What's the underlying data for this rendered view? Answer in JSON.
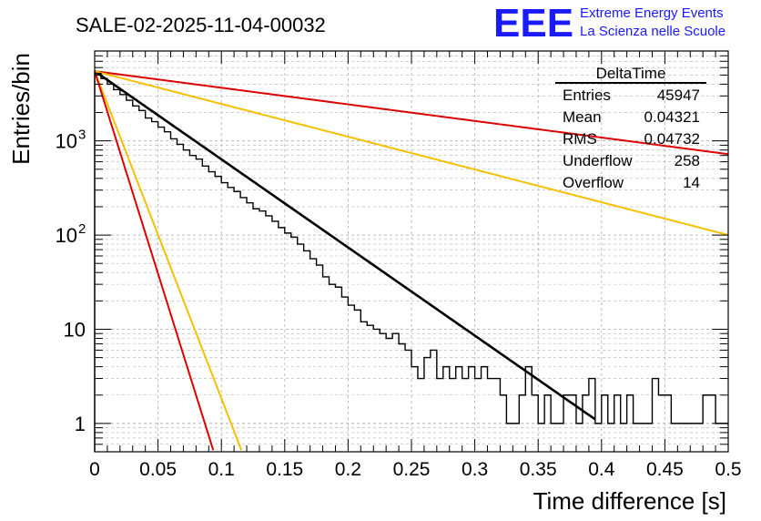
{
  "header": {
    "run_title": "SALE-02-2025-11-04-00032",
    "logo_text": "EEE",
    "project_line1": "Extreme Energy Events",
    "project_line2": "La Scienza nelle Scuole"
  },
  "colors": {
    "histogram": "#000000",
    "fit_main": "#000000",
    "red": "#dd0000",
    "yellow": "#f5c000",
    "logo": "#1a1aff",
    "grid": "#b0b0b0"
  },
  "chart_data": {
    "type": "histogram",
    "title": "SALE-02-2025-11-04-00032",
    "xlabel": "Time difference [s]",
    "ylabel": "Entries/bin",
    "xlim": [
      0,
      0.5
    ],
    "ylim": [
      0.5,
      9000
    ],
    "yscale": "log",
    "grid": true,
    "x_ticks": [
      {
        "v": 0,
        "label": "0"
      },
      {
        "v": 0.05,
        "label": "0.05"
      },
      {
        "v": 0.1,
        "label": "0.1"
      },
      {
        "v": 0.15,
        "label": "0.15"
      },
      {
        "v": 0.2,
        "label": "0.2"
      },
      {
        "v": 0.25,
        "label": "0.25"
      },
      {
        "v": 0.3,
        "label": "0.3"
      },
      {
        "v": 0.35,
        "label": "0.35"
      },
      {
        "v": 0.4,
        "label": "0.4"
      },
      {
        "v": 0.45,
        "label": "0.45"
      },
      {
        "v": 0.5,
        "label": "0.5"
      }
    ],
    "y_ticks": [
      {
        "v": 1,
        "label": "1"
      },
      {
        "v": 10,
        "label": "10"
      },
      {
        "v": 100,
        "label": "10",
        "exp": "2"
      },
      {
        "v": 1000,
        "label": "10",
        "exp": "3"
      }
    ],
    "bin_width": 0.005,
    "histogram_counts": [
      5200,
      4600,
      4000,
      3500,
      3100,
      2700,
      2350,
      2100,
      1750,
      1600,
      1400,
      1250,
      1050,
      920,
      800,
      700,
      640,
      540,
      470,
      420,
      360,
      320,
      290,
      250,
      220,
      190,
      180,
      160,
      140,
      120,
      105,
      95,
      80,
      68,
      56,
      48,
      36,
      30,
      28,
      22,
      18,
      16,
      12,
      11,
      10,
      9,
      8,
      9,
      7,
      6,
      4,
      3,
      5,
      6,
      3,
      4,
      3,
      4,
      3,
      4,
      3,
      4,
      3,
      3,
      2,
      1,
      1,
      2,
      4,
      2,
      1,
      2,
      1,
      1,
      2,
      2,
      1,
      2,
      3,
      1,
      2,
      1,
      2,
      1,
      2,
      1,
      1,
      1,
      3,
      2,
      2,
      1,
      1,
      1,
      1,
      1,
      2,
      2,
      1,
      1
    ],
    "fits": [
      {
        "name": "main-fit",
        "color": "black",
        "y0": 5500,
        "tau": 0.0464,
        "x_start": 0,
        "x_end": 0.395
      },
      {
        "name": "red-slow",
        "color": "red",
        "y0": 5500,
        "tau": 0.2464,
        "x_start": 0,
        "x_end": 0.5
      },
      {
        "name": "yellow-slow",
        "color": "yellow",
        "y0": 5500,
        "tau": 0.1248,
        "x_start": 0,
        "x_end": 0.5
      },
      {
        "name": "yellow-fast",
        "color": "yellow",
        "y0": 5500,
        "tau": 0.0125,
        "x_start": 0,
        "x_end": 0.117
      },
      {
        "name": "red-fast",
        "color": "red",
        "y0": 5500,
        "tau": 0.0101,
        "x_start": 0,
        "x_end": 0.095
      }
    ],
    "stats_box": {
      "title": "DeltaTime",
      "rows": [
        {
          "label": "Entries",
          "value": "45947"
        },
        {
          "label": "Mean",
          "value": "0.04321"
        },
        {
          "label": "RMS",
          "value": "0.04732"
        },
        {
          "label": "Underflow",
          "value": "258"
        },
        {
          "label": "Overflow",
          "value": "14"
        }
      ]
    }
  }
}
